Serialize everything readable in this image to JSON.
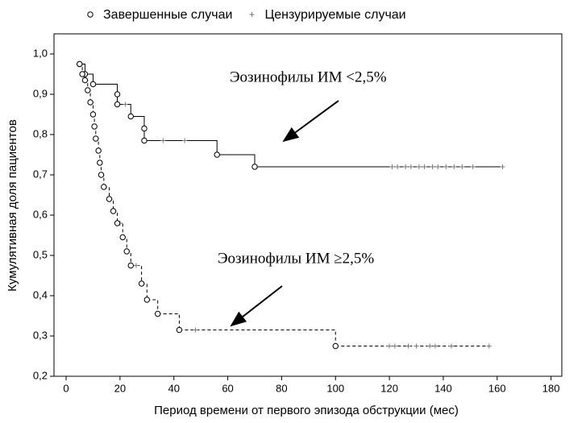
{
  "chart_data": {
    "type": "step",
    "legend": [
      {
        "name": "Завершенные случаи",
        "marker": "circle"
      },
      {
        "name": "Цензурируемые случаи",
        "marker": "cross"
      }
    ],
    "xlabel": "Период времени от первого эпизода обструкции (мес)",
    "ylabel": "Кумулятивная доля пациентов",
    "xlim": [
      -4.5,
      184
    ],
    "ylim": [
      0.2,
      1.05
    ],
    "xticks": [
      0,
      20,
      40,
      60,
      80,
      100,
      120,
      140,
      160,
      180
    ],
    "yticks": [
      {
        "value": 0.2,
        "label": "0,2"
      },
      {
        "value": 0.3,
        "label": "0,3"
      },
      {
        "value": 0.4,
        "label": "0,4"
      },
      {
        "value": 0.5,
        "label": "0,5"
      },
      {
        "value": 0.6,
        "label": "0,6"
      },
      {
        "value": 0.7,
        "label": "0,7"
      },
      {
        "value": 0.8,
        "label": "0,8"
      },
      {
        "value": 0.9,
        "label": "0,9"
      },
      {
        "value": 1.0,
        "label": "1,0"
      }
    ],
    "series": [
      {
        "name": "Эозинофилы ИМ <2,5%",
        "color": "#000000",
        "line_style": "solid",
        "events": {
          "x": [
            5,
            7,
            10,
            19,
            19,
            24,
            29,
            29,
            56,
            70
          ],
          "values": [
            0.975,
            0.95,
            0.925,
            0.9,
            0.875,
            0.845,
            0.815,
            0.785,
            0.75,
            0.72
          ]
        },
        "censored": {
          "x": [
            22,
            36,
            44,
            121,
            123,
            126,
            128,
            131,
            133,
            136,
            138,
            141,
            144,
            147,
            151,
            162
          ],
          "values": [
            0.875,
            0.785,
            0.785,
            0.72,
            0.72,
            0.72,
            0.72,
            0.72,
            0.72,
            0.72,
            0.72,
            0.72,
            0.72,
            0.72,
            0.72,
            0.72
          ]
        }
      },
      {
        "name": "Эозинофилы ИМ ≥2,5%",
        "color": "#000000",
        "line_style": "dashed",
        "events": {
          "x": [
            5,
            6,
            7,
            8,
            9,
            10,
            10.5,
            11,
            12,
            12.5,
            13,
            14,
            16,
            17.5,
            19,
            21,
            22.5,
            24,
            28,
            30,
            34,
            42,
            100
          ],
          "values": [
            0.975,
            0.95,
            0.935,
            0.91,
            0.88,
            0.85,
            0.82,
            0.79,
            0.76,
            0.73,
            0.7,
            0.67,
            0.64,
            0.61,
            0.58,
            0.545,
            0.51,
            0.475,
            0.43,
            0.39,
            0.355,
            0.315,
            0.275
          ]
        },
        "censored": {
          "x": [
            20,
            26,
            48,
            120,
            122,
            127,
            130,
            135,
            137,
            143,
            157
          ],
          "values": [
            0.58,
            0.475,
            0.315,
            0.275,
            0.275,
            0.275,
            0.275,
            0.275,
            0.275,
            0.275,
            0.275
          ]
        }
      }
    ]
  }
}
